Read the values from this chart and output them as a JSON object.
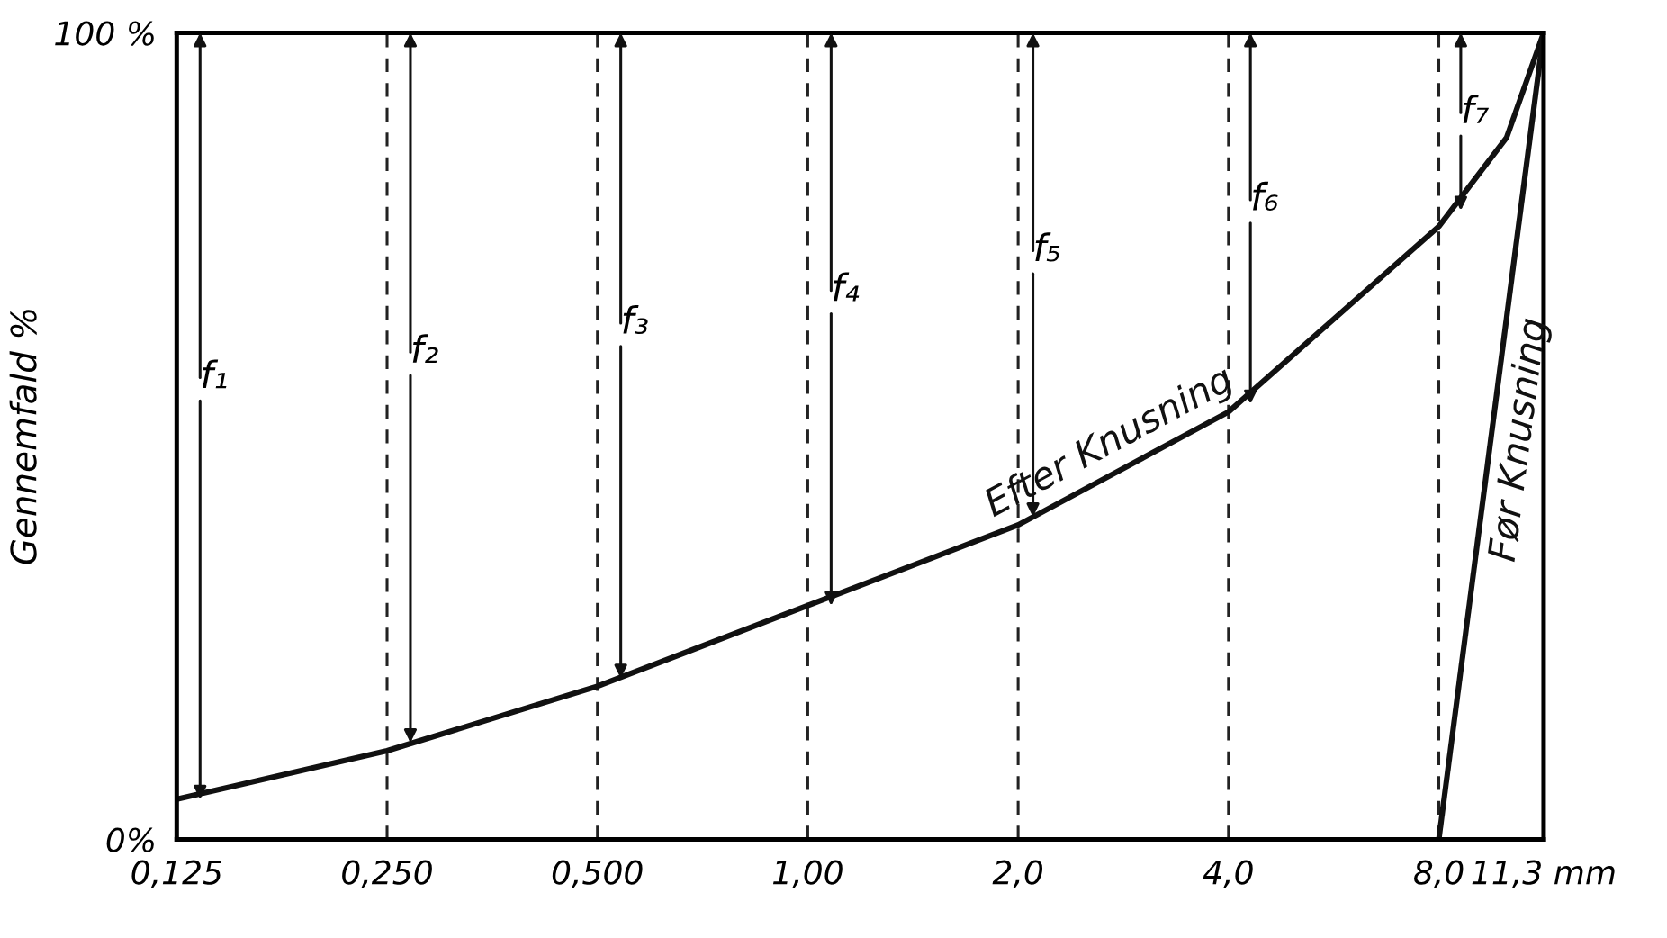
{
  "chart_data": {
    "type": "line",
    "ylabel": "Gennemfald %",
    "xlim": [
      0.125,
      11.3
    ],
    "log": "x",
    "xticks": [
      {
        "value": 0.125,
        "label": "0,125"
      },
      {
        "value": 0.25,
        "label": "0,250"
      },
      {
        "value": 0.5,
        "label": "0,500"
      },
      {
        "value": 1.0,
        "label": "1,00"
      },
      {
        "value": 2.0,
        "label": "2,0"
      },
      {
        "value": 4.0,
        "label": "4,0"
      },
      {
        "value": 8.0,
        "label": "8,0"
      },
      {
        "value": 11.3,
        "label": "11,3 mm"
      }
    ],
    "ylim": [
      0,
      100
    ],
    "yticks": [
      {
        "value": 0,
        "label": "0%"
      },
      {
        "value": 100,
        "label": "100 %"
      }
    ],
    "grid": "x",
    "marker": "none",
    "line_style": "solid",
    "series": [
      {
        "name": "Efter Knusning",
        "color": "#111111",
        "x": [
          0.125,
          0.25,
          0.5,
          1.0,
          2.0,
          4.0,
          8.0,
          10.0,
          11.3
        ],
        "values": [
          5,
          11,
          19,
          29,
          39,
          53,
          76,
          87,
          100
        ]
      },
      {
        "name": "Før Knusning",
        "color": "#111111",
        "x": [
          8.0,
          11.3
        ],
        "values": [
          0,
          100
        ]
      }
    ],
    "annotations": [
      {
        "text": "f₁",
        "x": 0.135,
        "y": 5
      },
      {
        "text": "f₂",
        "x": 0.27,
        "y": 12
      },
      {
        "text": "f₃",
        "x": 0.54,
        "y": 20
      },
      {
        "text": "f₄",
        "x": 1.08,
        "y": 29
      },
      {
        "text": "f₅",
        "x": 2.1,
        "y": 40
      },
      {
        "text": "f₆",
        "x": 4.3,
        "y": 54
      },
      {
        "text": "f₇",
        "x": 8.6,
        "y": 78
      }
    ]
  }
}
